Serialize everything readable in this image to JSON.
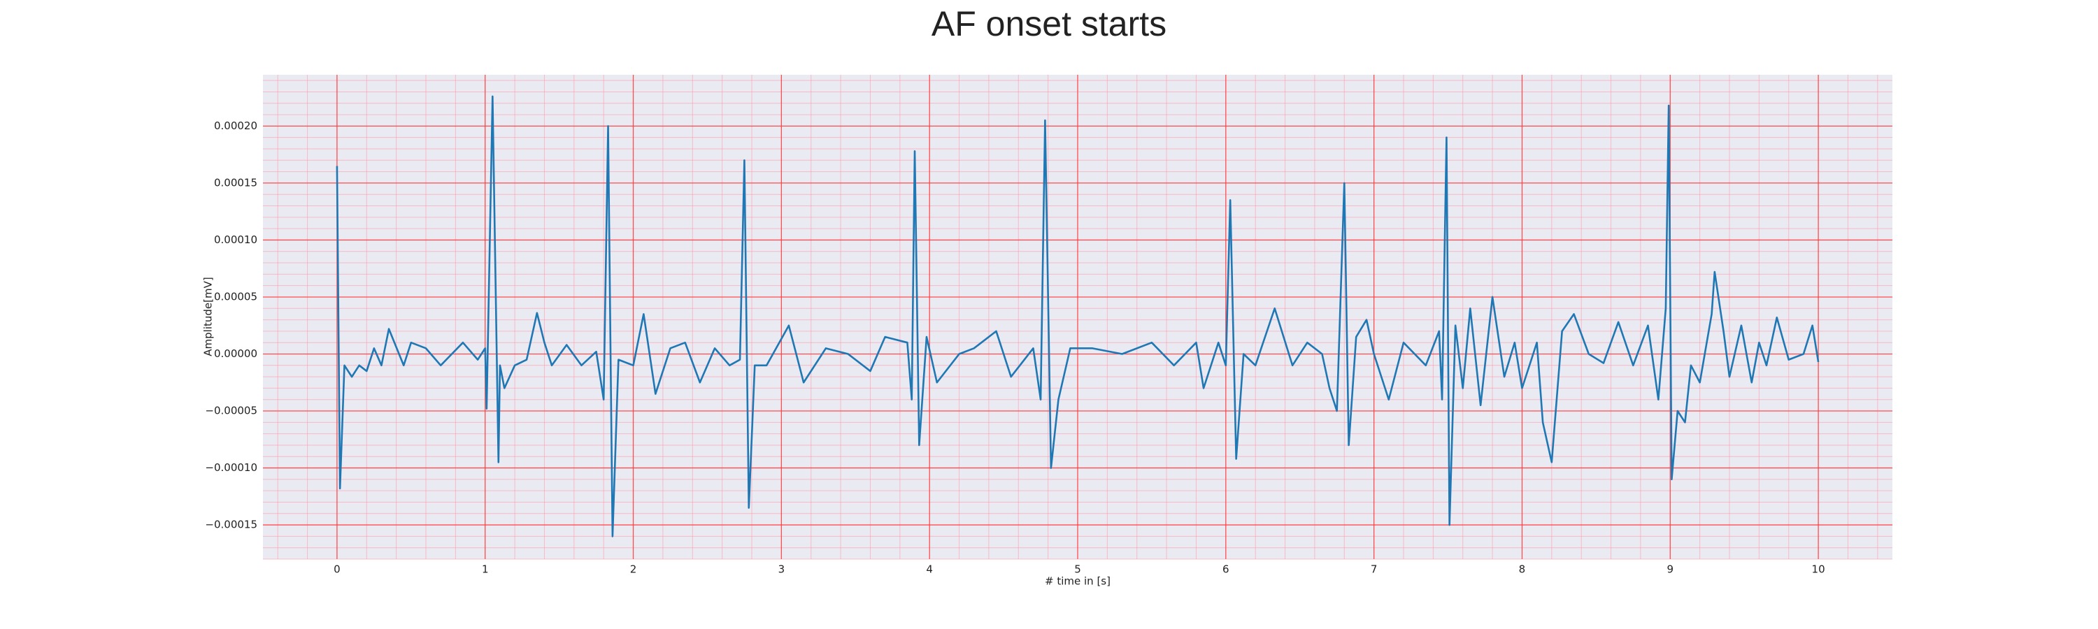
{
  "chart_data": {
    "type": "line",
    "title": "AF onset starts",
    "xlabel": "# time in [s]",
    "ylabel": "Amplitude[mV]",
    "color": "#1f77b4",
    "grid": true,
    "minor_grid": {
      "x_step": 0.2,
      "y_step": 1e-05
    },
    "xlim": [
      -0.5,
      10.5
    ],
    "xticks": [
      0,
      1,
      2,
      3,
      4,
      5,
      6,
      7,
      8,
      9,
      10
    ],
    "ylim": [
      -0.00018,
      0.000245
    ],
    "yticks": [
      {
        "value": -0.00015,
        "label": "−0.00015"
      },
      {
        "value": -0.0001,
        "label": "−0.00010"
      },
      {
        "value": -5e-05,
        "label": "−0.00005"
      },
      {
        "value": 0,
        "label": "0.00000"
      },
      {
        "value": 5e-05,
        "label": "0.00005"
      },
      {
        "value": 0.0001,
        "label": "0.00010"
      },
      {
        "value": 0.00015,
        "label": "0.00015"
      },
      {
        "value": 0.0002,
        "label": "0.00020"
      }
    ],
    "x": [
      0,
      0.02,
      0.05,
      0.1,
      0.15,
      0.2,
      0.25,
      0.3,
      0.35,
      0.45,
      0.5,
      0.6,
      0.7,
      0.85,
      0.95,
      1.0,
      1.01,
      1.05,
      1.09,
      1.1,
      1.13,
      1.2,
      1.28,
      1.35,
      1.4,
      1.45,
      1.55,
      1.65,
      1.75,
      1.8,
      1.83,
      1.86,
      1.9,
      2.0,
      2.07,
      2.15,
      2.25,
      2.35,
      2.45,
      2.55,
      2.65,
      2.72,
      2.75,
      2.78,
      2.82,
      2.9,
      3.05,
      3.15,
      3.3,
      3.45,
      3.6,
      3.7,
      3.85,
      3.88,
      3.9,
      3.93,
      3.98,
      4.05,
      4.2,
      4.3,
      4.45,
      4.55,
      4.7,
      4.75,
      4.78,
      4.82,
      4.87,
      4.95,
      5.1,
      5.3,
      5.5,
      5.65,
      5.8,
      5.85,
      5.95,
      6.0,
      6.03,
      6.07,
      6.12,
      6.2,
      6.33,
      6.45,
      6.55,
      6.65,
      6.7,
      6.75,
      6.8,
      6.83,
      6.88,
      6.95,
      7.0,
      7.1,
      7.2,
      7.35,
      7.44,
      7.46,
      7.49,
      7.51,
      7.55,
      7.6,
      7.65,
      7.72,
      7.8,
      7.88,
      7.95,
      8.0,
      8.1,
      8.14,
      8.2,
      8.27,
      8.35,
      8.45,
      8.55,
      8.65,
      8.75,
      8.85,
      8.92,
      8.97,
      8.99,
      9.01,
      9.05,
      9.1,
      9.14,
      9.2,
      9.28,
      9.3,
      9.36,
      9.4,
      9.48,
      9.55,
      9.6,
      9.65,
      9.72,
      9.8,
      9.9,
      9.96,
      10.0
    ],
    "values": [
      0.000165,
      -0.000118,
      -1e-05,
      -2e-05,
      -1e-05,
      -1.5e-05,
      5e-06,
      -1e-05,
      2.2e-05,
      -1e-05,
      1e-05,
      5e-06,
      -1e-05,
      1e-05,
      -5e-06,
      5e-06,
      -4.8e-05,
      0.000226,
      -9.5e-05,
      -1e-05,
      -3e-05,
      -1e-05,
      -5e-06,
      3.6e-05,
      1e-05,
      -1e-05,
      8e-06,
      -1e-05,
      2e-06,
      -4e-05,
      0.0002,
      -0.00016,
      -5e-06,
      -1e-05,
      3.5e-05,
      -3.5e-05,
      5e-06,
      1e-05,
      -2.5e-05,
      5e-06,
      -1e-05,
      -5e-06,
      0.00017,
      -0.000135,
      -1e-05,
      -1e-05,
      2.5e-05,
      -2.5e-05,
      5e-06,
      0,
      -1.5e-05,
      1.5e-05,
      1e-05,
      -4e-05,
      0.000178,
      -8e-05,
      1.5e-05,
      -2.5e-05,
      0,
      5e-06,
      2e-05,
      -2e-05,
      5e-06,
      -4e-05,
      0.000205,
      -0.0001,
      -4e-05,
      5e-06,
      5e-06,
      0,
      1e-05,
      -1e-05,
      1e-05,
      -3e-05,
      1e-05,
      -1e-05,
      0.000135,
      -9.2e-05,
      0,
      -1e-05,
      4e-05,
      -1e-05,
      1e-05,
      0,
      -3e-05,
      -5e-05,
      0.00015,
      -8e-05,
      1.5e-05,
      3e-05,
      0,
      -4e-05,
      1e-05,
      -1e-05,
      2e-05,
      -4e-05,
      0.00019,
      -0.00015,
      2.5e-05,
      -3e-05,
      4e-05,
      -4.5e-05,
      5e-05,
      -2e-05,
      1e-05,
      -3e-05,
      1e-05,
      -6e-05,
      -9.5e-05,
      2e-05,
      3.5e-05,
      0,
      -8e-06,
      2.8e-05,
      -1e-05,
      2.5e-05,
      -4e-05,
      4e-05,
      0.000218,
      -0.00011,
      -5e-05,
      -6e-05,
      -1e-05,
      -2.5e-05,
      3.5e-05,
      7.2e-05,
      2e-05,
      -2e-05,
      2.5e-05,
      -2.5e-05,
      1e-05,
      -1e-05,
      3.2e-05,
      -5e-06,
      0,
      2.5e-05,
      -7e-06
    ]
  }
}
